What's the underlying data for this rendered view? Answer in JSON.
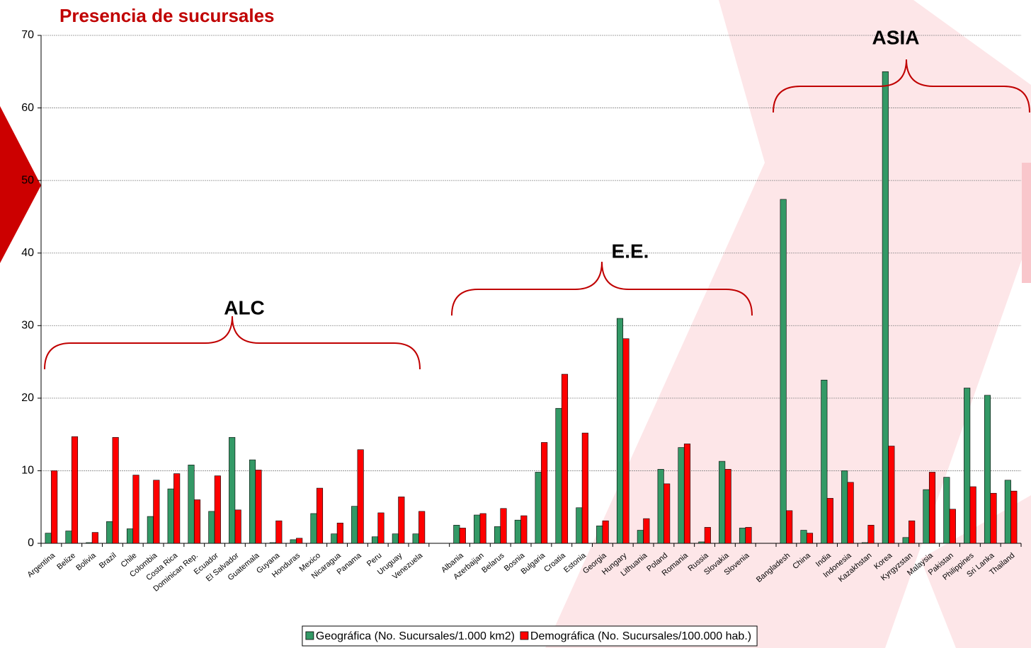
{
  "chart_data": {
    "type": "bar",
    "title": "Presencia de sucursales",
    "annotations": [
      "ALC",
      "E.E.",
      "ASIA"
    ],
    "categories": [
      "Argentina",
      "Belize",
      "Bolivia",
      "Brazil",
      "Chile",
      "Colombia",
      "Costa Rica",
      "Dominican Rep.",
      "Ecuador",
      "El Salvador",
      "Guatemala",
      "Guyana",
      "Honduras",
      "Mexico",
      "Nicaragua",
      "Panama",
      "Peru",
      "Uruguay",
      "Venezuela",
      null,
      "Albania",
      "Azerbaijan",
      "Belarus",
      "Bosnia",
      "Bulgaria",
      "Croatia",
      "Estonia",
      "Georgia",
      "Hungary",
      "Lithuania",
      "Poland",
      "Romania",
      "Russia",
      "Slovakia",
      "Slovenia",
      null,
      "Bangladesh",
      "China",
      "India",
      "Indonesia",
      "Kazakhstan",
      "Korea",
      "Kyrgyzstan",
      "Malaysia",
      "Pakistan",
      "Philippines",
      "Sri Lanka",
      "Thailand"
    ],
    "series": [
      {
        "name": "Geográfica (No. Sucursales/1.000 km2)",
        "color": "#339966",
        "values": [
          1.4,
          1.7,
          0.1,
          3.0,
          2.0,
          3.7,
          7.5,
          10.8,
          4.4,
          14.6,
          11.5,
          0.1,
          0.5,
          4.1,
          1.3,
          5.1,
          0.9,
          1.3,
          1.3,
          null,
          2.5,
          3.9,
          2.3,
          3.2,
          9.8,
          18.6,
          4.9,
          2.4,
          31.0,
          1.8,
          10.2,
          13.2,
          0.2,
          11.3,
          2.1,
          null,
          47.4,
          1.8,
          22.5,
          10.0,
          0.1,
          65.0,
          0.8,
          7.4,
          9.1,
          21.4,
          20.4,
          8.7
        ]
      },
      {
        "name": "Demográfica (No. Sucursales/100.000 hab.)",
        "color": "#ff0000",
        "values": [
          10.0,
          14.7,
          1.5,
          14.6,
          9.4,
          8.7,
          9.6,
          6.0,
          9.3,
          4.6,
          10.1,
          3.1,
          0.7,
          7.6,
          2.8,
          12.9,
          4.2,
          6.4,
          4.4,
          null,
          2.1,
          4.1,
          4.8,
          3.8,
          13.9,
          23.3,
          15.2,
          3.1,
          28.2,
          3.4,
          8.2,
          13.7,
          2.2,
          10.2,
          2.2,
          null,
          4.5,
          1.4,
          6.2,
          8.4,
          2.5,
          13.4,
          3.1,
          9.8,
          4.7,
          7.8,
          6.9,
          7.2
        ]
      }
    ],
    "ylim": [
      0,
      70
    ],
    "yticks": [
      0,
      10,
      20,
      30,
      40,
      50,
      60,
      70
    ],
    "grid": true,
    "legend": "bottom"
  }
}
